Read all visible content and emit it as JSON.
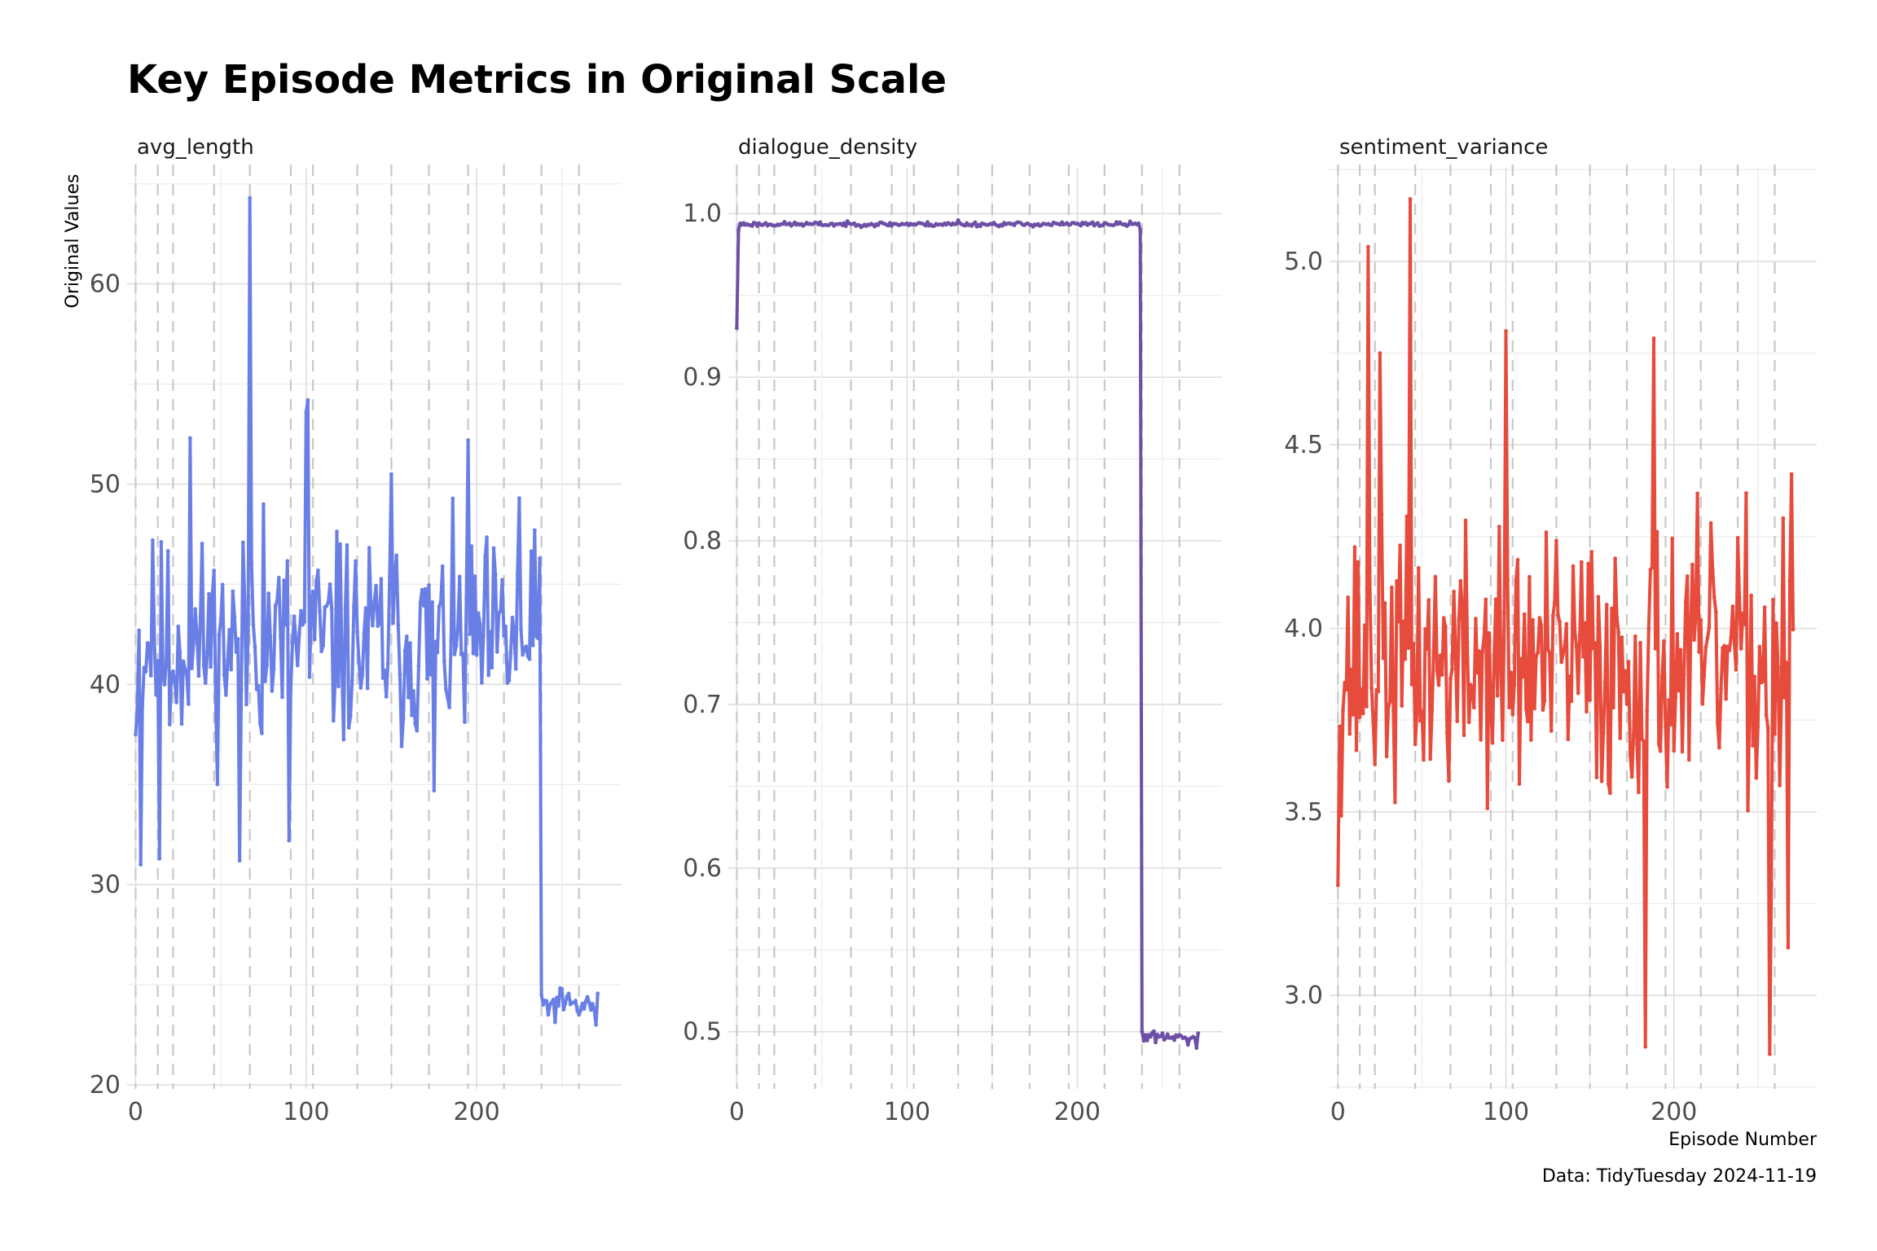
{
  "title": "Key Episode Metrics in Original Scale",
  "caption": "Data: TidyTuesday 2024-11-19",
  "xlabel": "Episode Number",
  "ylabel": "Original Values",
  "chart_data": [
    {
      "type": "line",
      "facet": "avg_length",
      "color": "#6A7FE6",
      "xlim": [
        -5,
        285
      ],
      "ylim": [
        19.8,
        65.8
      ],
      "yticks": [
        20,
        30,
        40,
        50,
        60
      ],
      "xticks": [
        0,
        100,
        200
      ],
      "season_breaks": [
        0,
        13,
        22,
        46,
        67,
        91,
        104,
        130,
        150,
        172,
        195,
        216,
        238,
        260
      ],
      "key_points": {
        "x": [
          0,
          3,
          8,
          10,
          14,
          20,
          32,
          45,
          61,
          67,
          68,
          75,
          90,
          100,
          101,
          103,
          120,
          150,
          175,
          195,
          225,
          237,
          238,
          239,
          250,
          260,
          270
        ],
        "y": [
          37.5,
          31,
          42,
          47.2,
          31.3,
          38,
          52.3,
          44.5,
          31.2,
          64.3,
          46,
          49,
          32.2,
          53.6,
          54.2,
          44,
          47,
          50.5,
          34.7,
          52.2,
          49.3,
          46.3,
          24.5,
          24,
          24.8,
          23.5,
          23
        ]
      },
      "seed": 11,
      "regimes": [
        {
          "from": 0,
          "to": 237,
          "mean": 42,
          "spread": 4.5
        },
        {
          "from": 238,
          "to": 271,
          "mean": 24,
          "spread": 0.7
        }
      ]
    },
    {
      "type": "line",
      "facet": "dialogue_density",
      "color": "#6E4FA6",
      "xlim": [
        -5,
        285
      ],
      "ylim": [
        0.465,
        1.028
      ],
      "yticks": [
        0.5,
        0.6,
        0.7,
        0.8,
        0.9,
        1.0
      ],
      "xticks": [
        0,
        100,
        200
      ],
      "season_breaks": [
        0,
        13,
        22,
        46,
        67,
        91,
        104,
        130,
        150,
        172,
        195,
        216,
        238,
        260
      ],
      "key_points": {
        "x": [
          0,
          1,
          2,
          50,
          100,
          130,
          200,
          236,
          237,
          238,
          250,
          260,
          265,
          270
        ],
        "y": [
          0.93,
          0.99,
          0.994,
          0.993,
          0.994,
          0.996,
          0.994,
          0.994,
          0.99,
          0.5,
          0.499,
          0.498,
          0.492,
          0.49
        ]
      },
      "seed": 23,
      "regimes": [
        {
          "from": 3,
          "to": 236,
          "mean": 0.9935,
          "spread": 0.0012
        },
        {
          "from": 239,
          "to": 271,
          "mean": 0.497,
          "spread": 0.003
        }
      ]
    },
    {
      "type": "line",
      "facet": "sentiment_variance",
      "color": "#E64B3C",
      "xlim": [
        -5,
        285
      ],
      "ylim": [
        2.745,
        5.255
      ],
      "yticks": [
        3.0,
        3.5,
        4.0,
        4.5,
        5.0
      ],
      "xticks": [
        0,
        100,
        200
      ],
      "season_breaks": [
        0,
        13,
        22,
        46,
        67,
        91,
        104,
        130,
        150,
        172,
        195,
        216,
        238,
        260
      ],
      "key_points": {
        "x": [
          0,
          18,
          25,
          43,
          100,
          183,
          188,
          257,
          258,
          265,
          268,
          270
        ],
        "y": [
          3.3,
          5.04,
          4.75,
          5.17,
          4.81,
          2.86,
          4.79,
          2.84,
          3.3,
          4.3,
          3.13,
          4.42
        ]
      },
      "seed": 37,
      "regimes": [
        {
          "from": 0,
          "to": 271,
          "mean": 3.9,
          "spread": 0.32
        }
      ]
    }
  ]
}
